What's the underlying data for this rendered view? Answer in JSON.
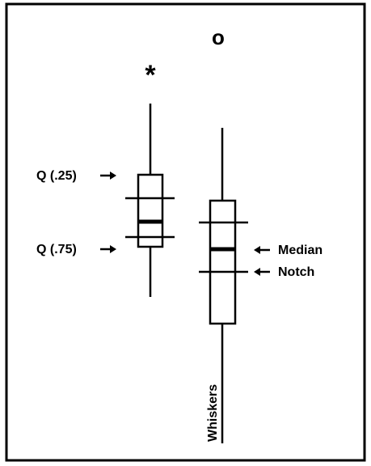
{
  "labels": {
    "q25": "Q (.25)",
    "q75": "Q (.75)",
    "median": "Median",
    "notch": "Notch",
    "whiskers": "Whiskers",
    "star": "*",
    "outlier": "o"
  }
}
